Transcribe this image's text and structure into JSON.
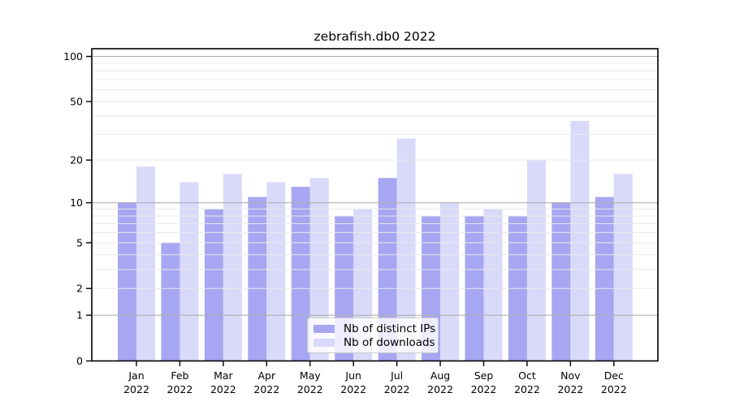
{
  "figure": {
    "title": "zebrafish.db0 2022"
  },
  "chart_data": {
    "type": "bar",
    "title": "zebrafish.db0 2022",
    "categories": [
      "Jan 2022",
      "Feb 2022",
      "Mar 2022",
      "Apr 2022",
      "May 2022",
      "Jun 2022",
      "Jul 2022",
      "Aug 2022",
      "Sep 2022",
      "Oct 2022",
      "Nov 2022",
      "Dec 2022"
    ],
    "series": [
      {
        "name": "Nb of distinct IPs",
        "color": "#a6a6f2",
        "values": [
          10,
          5,
          9,
          11,
          13,
          8,
          15,
          8,
          8,
          8,
          10,
          11
        ]
      },
      {
        "name": "Nb of downloads",
        "color": "#d9d9fa",
        "values": [
          18,
          14,
          16,
          14,
          15,
          9,
          28,
          10,
          9,
          20,
          37,
          16
        ]
      }
    ],
    "xlabel": "",
    "ylabel": "",
    "y_scale": "log10(1+x)",
    "ylim": [
      0,
      112
    ],
    "yticks": [
      0,
      1,
      2,
      5,
      10,
      20,
      50,
      100
    ],
    "grid": {
      "major_values": [
        1,
        10,
        100
      ],
      "minor_values": [
        2,
        3,
        4,
        5,
        6,
        7,
        8,
        9,
        20,
        30,
        40,
        50,
        60,
        70,
        80,
        90
      ],
      "major_color": "#b0b0b0",
      "minor_color": "#e9e9e9",
      "grid_on_top_of_bars": true
    },
    "legend": {
      "position": "lower center",
      "entries": [
        "Nb of distinct IPs",
        "Nb of downloads"
      ]
    }
  }
}
